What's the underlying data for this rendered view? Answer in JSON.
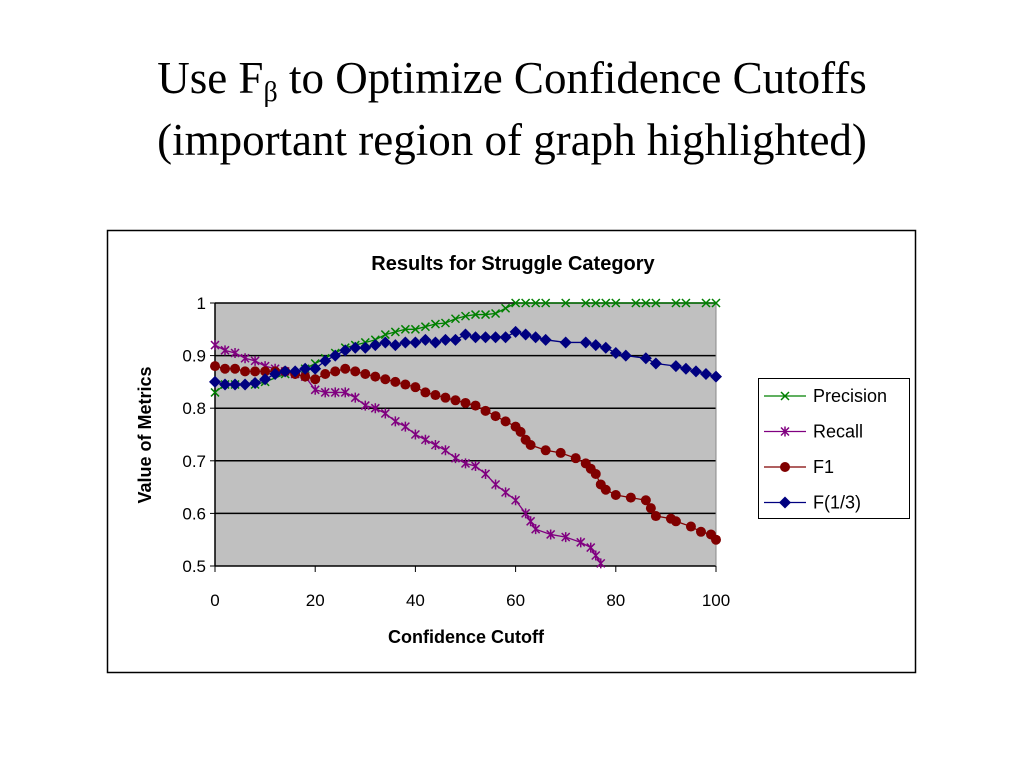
{
  "slide": {
    "title_line1_prefix": "Use F",
    "title_line1_sub": "β",
    "title_line1_suffix": " to Optimize Confidence Cutoffs",
    "title_line2": "(important region of graph highlighted)"
  },
  "chart_data": {
    "type": "line",
    "title": "Results for Struggle Category",
    "xlabel": "Confidence Cutoff",
    "ylabel": "Value of Metrics",
    "xlim": [
      0,
      100
    ],
    "ylim": [
      0.5,
      1
    ],
    "xticks": [
      "0",
      "20",
      "40",
      "60",
      "80",
      "100"
    ],
    "yticks": [
      "0.5",
      "0.6",
      "0.7",
      "0.8",
      "0.9",
      "1"
    ],
    "grid": true,
    "legend_position": "right",
    "series": [
      {
        "name": "Precision",
        "color": "#008000",
        "marker": "x",
        "x": [
          0,
          2,
          4,
          8,
          10,
          14,
          18,
          20,
          22,
          24,
          26,
          28,
          30,
          32,
          34,
          36,
          38,
          40,
          42,
          44,
          46,
          48,
          50,
          52,
          54,
          56,
          58,
          60,
          62,
          64,
          66,
          70,
          74,
          76,
          78,
          80,
          84,
          86,
          88,
          92,
          94,
          98,
          100
        ],
        "y": [
          0.83,
          0.845,
          0.845,
          0.845,
          0.85,
          0.865,
          0.875,
          0.885,
          0.895,
          0.905,
          0.915,
          0.92,
          0.925,
          0.93,
          0.94,
          0.945,
          0.95,
          0.95,
          0.955,
          0.96,
          0.962,
          0.97,
          0.975,
          0.978,
          0.978,
          0.98,
          0.99,
          1,
          1,
          1,
          1,
          1,
          1,
          1,
          1,
          1,
          1,
          1,
          1,
          1,
          1,
          1,
          1
        ]
      },
      {
        "name": "Recall",
        "color": "#800080",
        "marker": "star",
        "x": [
          0,
          2,
          4,
          6,
          8,
          10,
          12,
          14,
          16,
          18,
          20,
          22,
          24,
          26,
          28,
          30,
          32,
          34,
          36,
          38,
          40,
          42,
          44,
          46,
          48,
          50,
          52,
          54,
          56,
          58,
          60,
          62,
          63,
          64,
          67,
          70,
          73,
          75,
          76,
          77
        ],
        "y": [
          0.92,
          0.91,
          0.905,
          0.895,
          0.89,
          0.88,
          0.875,
          0.87,
          0.865,
          0.86,
          0.835,
          0.83,
          0.83,
          0.83,
          0.82,
          0.805,
          0.8,
          0.79,
          0.775,
          0.765,
          0.75,
          0.74,
          0.73,
          0.72,
          0.705,
          0.695,
          0.69,
          0.675,
          0.655,
          0.64,
          0.625,
          0.6,
          0.585,
          0.57,
          0.56,
          0.555,
          0.545,
          0.535,
          0.52,
          0.505
        ]
      },
      {
        "name": "F1",
        "color": "#800000",
        "marker": "circle",
        "x": [
          0,
          2,
          4,
          6,
          8,
          10,
          12,
          14,
          16,
          18,
          20,
          22,
          24,
          26,
          28,
          30,
          32,
          34,
          36,
          38,
          40,
          42,
          44,
          46,
          48,
          50,
          52,
          54,
          56,
          58,
          60,
          61,
          62,
          63,
          66,
          69,
          72,
          74,
          75,
          76,
          77,
          78,
          80,
          83,
          86,
          87,
          88,
          91,
          92,
          95,
          97,
          99,
          100
        ],
        "y": [
          0.88,
          0.875,
          0.875,
          0.87,
          0.87,
          0.87,
          0.87,
          0.87,
          0.865,
          0.86,
          0.855,
          0.865,
          0.87,
          0.875,
          0.87,
          0.865,
          0.86,
          0.855,
          0.85,
          0.845,
          0.84,
          0.83,
          0.825,
          0.82,
          0.815,
          0.81,
          0.805,
          0.795,
          0.785,
          0.775,
          0.765,
          0.755,
          0.74,
          0.73,
          0.72,
          0.715,
          0.705,
          0.695,
          0.685,
          0.675,
          0.655,
          0.645,
          0.635,
          0.63,
          0.625,
          0.61,
          0.595,
          0.59,
          0.585,
          0.575,
          0.565,
          0.56,
          0.55
        ]
      },
      {
        "name": "F(1/3)",
        "color": "#000080",
        "marker": "diamond",
        "x": [
          0,
          2,
          4,
          6,
          8,
          10,
          12,
          14,
          16,
          18,
          20,
          22,
          24,
          26,
          28,
          30,
          32,
          34,
          36,
          38,
          40,
          42,
          44,
          46,
          48,
          50,
          52,
          54,
          56,
          58,
          60,
          62,
          64,
          66,
          70,
          74,
          76,
          78,
          80,
          82,
          86,
          88,
          92,
          94,
          96,
          98,
          100
        ],
        "y": [
          0.85,
          0.845,
          0.845,
          0.845,
          0.848,
          0.855,
          0.865,
          0.87,
          0.87,
          0.875,
          0.875,
          0.89,
          0.9,
          0.91,
          0.915,
          0.915,
          0.92,
          0.925,
          0.92,
          0.925,
          0.925,
          0.93,
          0.925,
          0.93,
          0.93,
          0.94,
          0.935,
          0.935,
          0.935,
          0.935,
          0.945,
          0.94,
          0.935,
          0.93,
          0.925,
          0.925,
          0.92,
          0.915,
          0.905,
          0.9,
          0.895,
          0.885,
          0.88,
          0.875,
          0.87,
          0.865,
          0.86
        ]
      }
    ]
  }
}
